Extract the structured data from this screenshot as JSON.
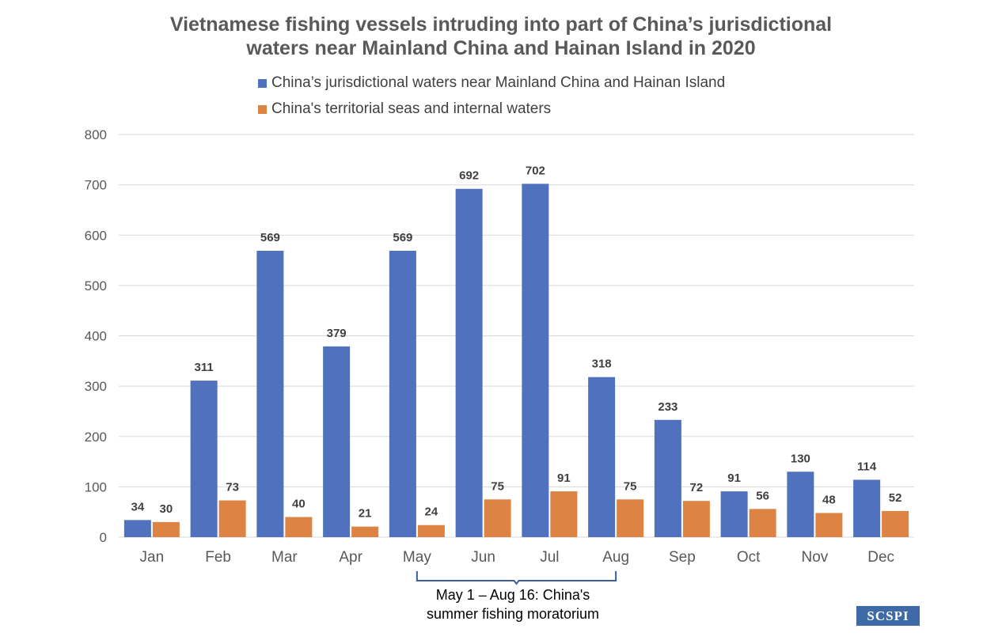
{
  "chart_data": {
    "type": "bar",
    "title_lines": [
      "Vietnamese fishing vessels intruding into part of China’s jurisdictional",
      "waters near Mainland China and Hainan Island in 2020"
    ],
    "categories": [
      "Jan",
      "Feb",
      "Mar",
      "Apr",
      "May",
      "Jun",
      "Jul",
      "Aug",
      "Sep",
      "Oct",
      "Nov",
      "Dec"
    ],
    "series": [
      {
        "name": "China’s jurisdictional waters near Mainland China and Hainan Island",
        "color": "#4f71be",
        "values": [
          34,
          311,
          569,
          379,
          569,
          692,
          702,
          318,
          233,
          91,
          130,
          114
        ]
      },
      {
        "name": "China's territorial seas and internal waters",
        "color": "#dd8344",
        "values": [
          30,
          73,
          40,
          21,
          24,
          75,
          91,
          75,
          72,
          56,
          48,
          52
        ]
      }
    ],
    "ylim": [
      0,
      800
    ],
    "yticks": [
      0,
      100,
      200,
      300,
      400,
      500,
      600,
      700,
      800
    ],
    "grid": true,
    "legend_position": "top",
    "annotation": {
      "lines": [
        "May 1 – Aug 16: China's",
        "summer fishing moratorium"
      ],
      "bracket_from": "May",
      "bracket_to": "Aug"
    }
  },
  "logo_text": "SCSPI"
}
